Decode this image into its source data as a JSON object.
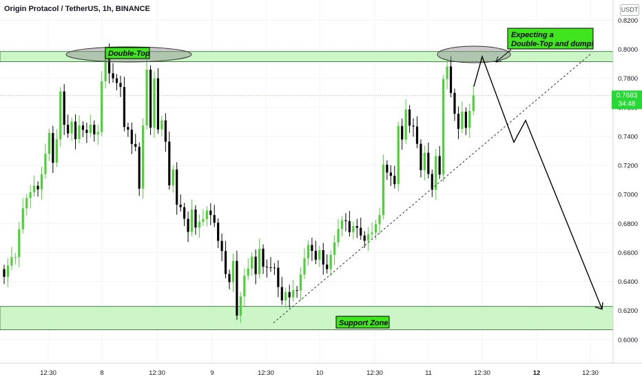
{
  "header": {
    "title": "Origin Protacol / TetherUS, 1h, BINANCE",
    "currency": "USDT"
  },
  "price_badge": {
    "price": "0.7683",
    "countdown": "34:48",
    "color": "#26d934"
  },
  "annotations": {
    "double_top": "Double-Top",
    "expect_line1": "Expecting a",
    "expect_line2": "Double-Top and dump!",
    "support": "Support Zone"
  },
  "colors": {
    "bull": "#4cd137",
    "bear": "#000000",
    "zone_fill": "#ccf5c8",
    "label_fill": "#3fe61e"
  },
  "chart_data": {
    "type": "candlestick",
    "title": "Origin Protacol / TetherUS, 1h, BINANCE",
    "y_ticks": [
      "0.8200",
      "0.8000",
      "0.7800",
      "0.7600",
      "0.7400",
      "0.7200",
      "0.7000",
      "0.6800",
      "0.6600",
      "0.6400",
      "0.6200",
      "0.6000"
    ],
    "x_ticks": [
      "12:30",
      "8",
      "12:30",
      "9",
      "12:30",
      "10",
      "12:30",
      "11",
      "12:30",
      "12",
      "12:30"
    ],
    "ylim": [
      0.592,
      0.834
    ],
    "last_price": 0.7683,
    "resistance_zone": [
      0.7915,
      0.7985
    ],
    "support_zone": [
      0.6068,
      0.6228
    ],
    "trendline": {
      "from": 0.6115,
      "to": 0.797
    },
    "projection": [
      0.7745,
      0.795,
      0.736,
      0.751,
      0.621
    ],
    "closes": [
      0.6432,
      0.651,
      0.6568,
      0.6568,
      0.676,
      0.6905,
      0.6975,
      0.7015,
      0.706,
      0.7035,
      0.714,
      0.728,
      0.7423,
      0.7218,
      0.738,
      0.771,
      0.748,
      0.742,
      0.7502,
      0.7381,
      0.7475,
      0.7445,
      0.7424,
      0.748,
      0.7414,
      0.743,
      0.778,
      0.799,
      0.7835,
      0.78,
      0.7768,
      0.7741,
      0.7465,
      0.7446,
      0.7348,
      0.7328,
      0.704,
      0.7475,
      0.786,
      0.746,
      0.78,
      0.7448,
      0.751,
      0.7364,
      0.7063,
      0.7172,
      0.693,
      0.6912,
      0.6832,
      0.6742,
      0.6896,
      0.6772,
      0.6812,
      0.683,
      0.6889,
      0.6858,
      0.6805,
      0.668,
      0.661,
      0.6452,
      0.6396,
      0.6542,
      0.6165,
      0.6297,
      0.644,
      0.6489,
      0.6571,
      0.6451,
      0.6626,
      0.6502,
      0.6498,
      0.6496,
      0.6495,
      0.6362,
      0.627,
      0.6327,
      0.6291,
      0.634,
      0.6338,
      0.6448,
      0.656,
      0.6652,
      0.6611,
      0.655,
      0.6616,
      0.6517,
      0.6485,
      0.6584,
      0.667,
      0.6762,
      0.6822,
      0.6816,
      0.674,
      0.6782,
      0.677,
      0.6717,
      0.6681,
      0.6726,
      0.6738,
      0.6795,
      0.6858,
      0.7205,
      0.7151,
      0.7128,
      0.7071,
      0.7472,
      0.7378,
      0.7586,
      0.7474,
      0.7468,
      0.7349,
      0.7167,
      0.7287,
      0.7141,
      0.7032,
      0.7264,
      0.7137,
      0.7795,
      0.7882,
      0.77,
      0.7556,
      0.7452,
      0.757,
      0.7459,
      0.7575,
      0.7683
    ],
    "bull_indices": [
      0,
      1,
      2,
      4,
      5,
      6,
      7,
      8,
      10,
      11,
      12,
      14,
      15,
      17,
      19,
      21,
      23,
      25,
      26,
      27,
      37,
      38,
      40,
      42,
      47,
      50,
      53,
      54,
      61,
      63,
      64,
      65,
      66,
      68,
      73,
      75,
      77,
      79,
      80,
      81,
      82,
      84,
      87,
      88,
      89,
      90,
      93,
      96,
      97,
      98,
      99,
      100,
      101,
      105,
      107,
      112,
      115,
      117,
      118,
      122,
      124,
      125
    ]
  }
}
